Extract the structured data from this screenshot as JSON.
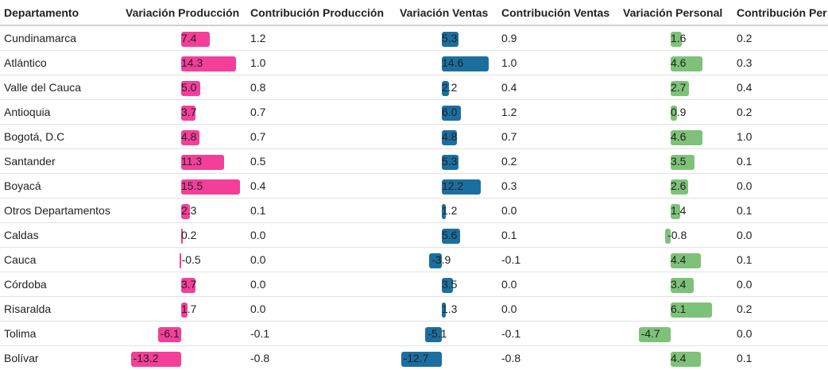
{
  "chart_data": {
    "type": "table",
    "columns": [
      "Departamento",
      "Variación Producción",
      "Contribución Producción",
      "Variación Ventas",
      "Contribución Ventas",
      "Variación Personal",
      "Contribución Per"
    ],
    "colors": {
      "produccion": "#f33f9a",
      "ventas": "#1b6fa0",
      "personal": "#7dc278"
    },
    "rows": [
      {
        "departamento": "Cundinamarca",
        "var_prod": "7.4",
        "con_prod": "1.2",
        "var_ventas": "5.3",
        "con_ventas": "0.9",
        "var_pers": "1.6",
        "con_pers": "0.2"
      },
      {
        "departamento": "Atlántico",
        "var_prod": "14.3",
        "con_prod": "1.0",
        "var_ventas": "14.6",
        "con_ventas": "1.0",
        "var_pers": "4.6",
        "con_pers": "0.3"
      },
      {
        "departamento": "Valle del Cauca",
        "var_prod": "5.0",
        "con_prod": "0.8",
        "var_ventas": "2.2",
        "con_ventas": "0.4",
        "var_pers": "2.7",
        "con_pers": "0.4"
      },
      {
        "departamento": "Antioquia",
        "var_prod": "3.7",
        "con_prod": "0.7",
        "var_ventas": "6.0",
        "con_ventas": "1.2",
        "var_pers": "0.9",
        "con_pers": "0.2"
      },
      {
        "departamento": "Bogotá, D.C",
        "var_prod": "4.8",
        "con_prod": "0.7",
        "var_ventas": "4.8",
        "con_ventas": "0.7",
        "var_pers": "4.6",
        "con_pers": "1.0"
      },
      {
        "departamento": "Santander",
        "var_prod": "11.3",
        "con_prod": "0.5",
        "var_ventas": "5.3",
        "con_ventas": "0.2",
        "var_pers": "3.5",
        "con_pers": "0.1"
      },
      {
        "departamento": "Boyacá",
        "var_prod": "15.5",
        "con_prod": "0.4",
        "var_ventas": "12.2",
        "con_ventas": "0.3",
        "var_pers": "2.6",
        "con_pers": "0.0"
      },
      {
        "departamento": "Otros Departamentos",
        "var_prod": "2.3",
        "con_prod": "0.1",
        "var_ventas": "1.2",
        "con_ventas": "0.0",
        "var_pers": "1.4",
        "con_pers": "0.1"
      },
      {
        "departamento": "Caldas",
        "var_prod": "0.2",
        "con_prod": "0.0",
        "var_ventas": "5.6",
        "con_ventas": "0.1",
        "var_pers": "-0.8",
        "con_pers": "0.0"
      },
      {
        "departamento": "Cauca",
        "var_prod": "-0.5",
        "con_prod": "0.0",
        "var_ventas": "-3.9",
        "con_ventas": "-0.1",
        "var_pers": "4.4",
        "con_pers": "0.1"
      },
      {
        "departamento": "Córdoba",
        "var_prod": "3.7",
        "con_prod": "0.0",
        "var_ventas": "3.5",
        "con_ventas": "0.0",
        "var_pers": "3.4",
        "con_pers": "0.0"
      },
      {
        "departamento": "Risaralda",
        "var_prod": "1.7",
        "con_prod": "0.0",
        "var_ventas": "1.3",
        "con_ventas": "0.0",
        "var_pers": "6.1",
        "con_pers": "0.2"
      },
      {
        "departamento": "Tolima",
        "var_prod": "-6.1",
        "con_prod": "-0.1",
        "var_ventas": "-5.1",
        "con_ventas": "-0.1",
        "var_pers": "-4.7",
        "con_pers": "0.0"
      },
      {
        "departamento": "Bolívar",
        "var_prod": "-13.2",
        "con_prod": "-0.8",
        "var_ventas": "-12.7",
        "con_ventas": "-0.8",
        "var_pers": "4.4",
        "con_pers": "0.1"
      }
    ]
  }
}
